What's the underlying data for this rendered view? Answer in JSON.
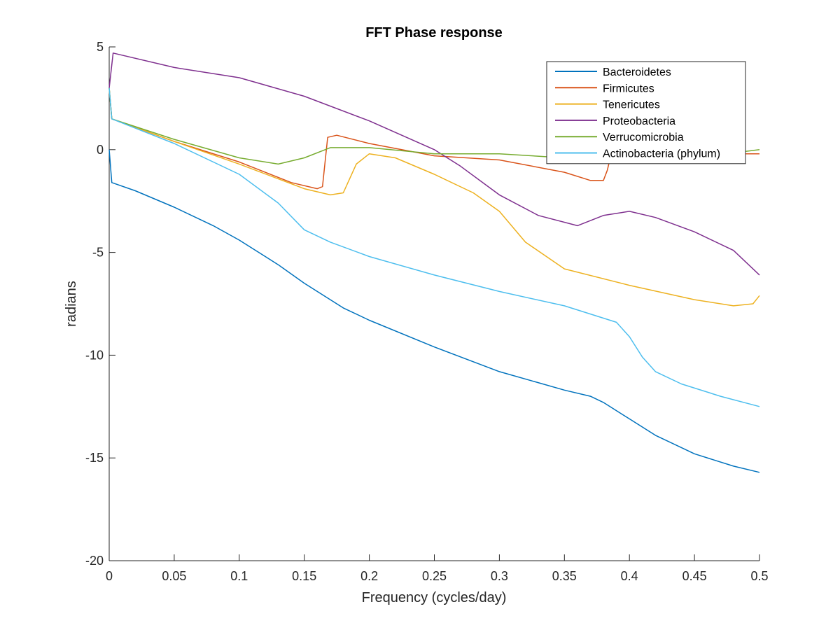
{
  "chart_data": {
    "type": "line",
    "title": "FFT Phase response",
    "xlabel": "Frequency (cycles/day)",
    "ylabel": "radians",
    "xlim": [
      0,
      0.5
    ],
    "ylim": [
      -20,
      5
    ],
    "xticks": [
      0,
      0.05,
      0.1,
      0.15,
      0.2,
      0.25,
      0.3,
      0.35,
      0.4,
      0.45,
      0.5
    ],
    "xtick_labels": [
      "0",
      "0.05",
      "0.1",
      "0.15",
      "0.2",
      "0.25",
      "0.3",
      "0.35",
      "0.4",
      "0.45",
      "0.5"
    ],
    "yticks": [
      5,
      0,
      -5,
      -10,
      -15,
      -20
    ],
    "ytick_labels": [
      "5",
      "0",
      "-5",
      "-10",
      "-15",
      "-20"
    ],
    "grid": false,
    "legend_position": "top-right",
    "series": [
      {
        "name": "Bacteroidetes",
        "color": "#0072BD",
        "x": [
          0,
          0.002,
          0.02,
          0.05,
          0.08,
          0.1,
          0.13,
          0.15,
          0.18,
          0.2,
          0.25,
          0.3,
          0.35,
          0.37,
          0.38,
          0.4,
          0.42,
          0.45,
          0.48,
          0.5
        ],
        "y": [
          0,
          -1.6,
          -2.0,
          -2.8,
          -3.7,
          -4.4,
          -5.6,
          -6.5,
          -7.7,
          -8.3,
          -9.6,
          -10.8,
          -11.7,
          -12.0,
          -12.3,
          -13.1,
          -13.9,
          -14.8,
          -15.4,
          -15.7
        ]
      },
      {
        "name": "Firmicutes",
        "color": "#D95319",
        "x": [
          0,
          0.002,
          0.05,
          0.1,
          0.14,
          0.16,
          0.164,
          0.168,
          0.175,
          0.2,
          0.25,
          0.3,
          0.35,
          0.37,
          0.38,
          0.383,
          0.386,
          0.4,
          0.45,
          0.5
        ],
        "y": [
          3.0,
          1.5,
          0.4,
          -0.6,
          -1.6,
          -1.9,
          -1.8,
          0.6,
          0.7,
          0.3,
          -0.3,
          -0.5,
          -1.1,
          -1.5,
          -1.5,
          -1.0,
          -0.2,
          -0.2,
          -0.2,
          -0.2
        ]
      },
      {
        "name": "Tenericutes",
        "color": "#EDB120",
        "x": [
          0,
          0.002,
          0.05,
          0.1,
          0.15,
          0.17,
          0.18,
          0.19,
          0.2,
          0.22,
          0.25,
          0.28,
          0.3,
          0.32,
          0.35,
          0.4,
          0.45,
          0.48,
          0.495,
          0.5
        ],
        "y": [
          3.0,
          1.5,
          0.4,
          -0.7,
          -1.9,
          -2.2,
          -2.1,
          -0.7,
          -0.2,
          -0.4,
          -1.2,
          -2.1,
          -3.0,
          -4.5,
          -5.8,
          -6.6,
          -7.3,
          -7.6,
          -7.5,
          -7.1
        ]
      },
      {
        "name": "Proteobacteria",
        "color": "#7E2F8E",
        "x": [
          0,
          0.003,
          0.05,
          0.1,
          0.15,
          0.2,
          0.25,
          0.27,
          0.3,
          0.33,
          0.36,
          0.38,
          0.4,
          0.42,
          0.45,
          0.48,
          0.5
        ],
        "y": [
          3.0,
          4.7,
          4.0,
          3.5,
          2.6,
          1.4,
          0.0,
          -0.8,
          -2.2,
          -3.2,
          -3.7,
          -3.2,
          -3.0,
          -3.3,
          -4.0,
          -4.9,
          -6.1
        ]
      },
      {
        "name": "Verrucomicrobia",
        "color": "#77AC30",
        "x": [
          0,
          0.002,
          0.05,
          0.1,
          0.13,
          0.15,
          0.17,
          0.2,
          0.25,
          0.3,
          0.35,
          0.4,
          0.45,
          0.5
        ],
        "y": [
          3.0,
          1.5,
          0.5,
          -0.4,
          -0.7,
          -0.4,
          0.1,
          0.1,
          -0.2,
          -0.2,
          -0.4,
          -0.5,
          -0.4,
          0.0
        ]
      },
      {
        "name": "Actinobacteria (phylum)",
        "color": "#4DBEEE",
        "x": [
          0,
          0.002,
          0.05,
          0.1,
          0.13,
          0.15,
          0.17,
          0.2,
          0.25,
          0.3,
          0.35,
          0.39,
          0.4,
          0.41,
          0.42,
          0.44,
          0.47,
          0.5
        ],
        "y": [
          3.0,
          1.5,
          0.3,
          -1.2,
          -2.6,
          -3.9,
          -4.5,
          -5.2,
          -6.1,
          -6.9,
          -7.6,
          -8.4,
          -9.1,
          -10.1,
          -10.8,
          -11.4,
          -12.0,
          -12.5
        ]
      }
    ]
  }
}
